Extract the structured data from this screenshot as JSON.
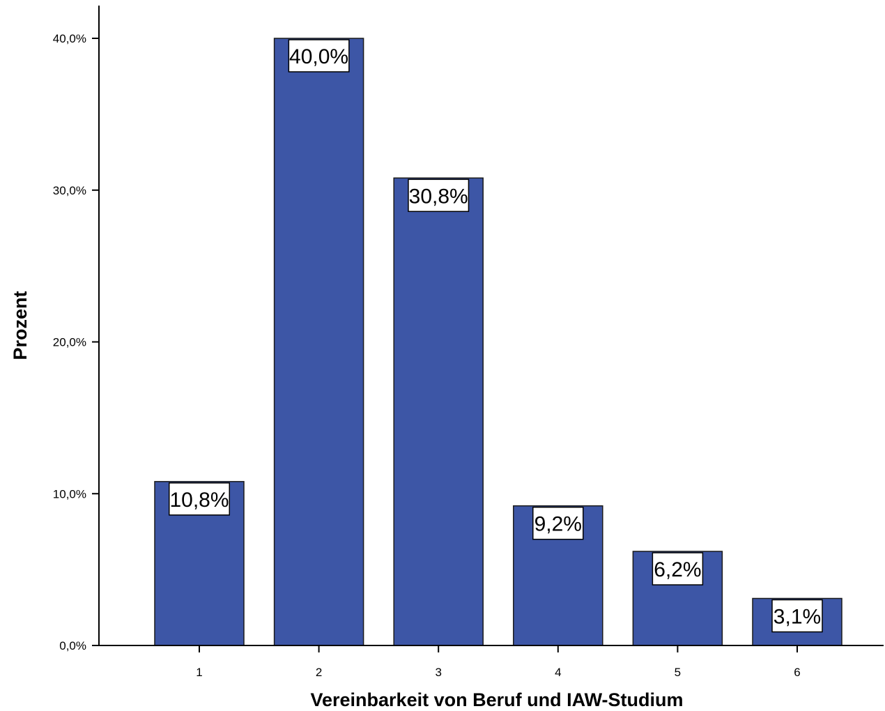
{
  "chart_data": {
    "type": "bar",
    "title": "",
    "xlabel": "Vereinbarkeit von Beruf und IAW-Studium",
    "ylabel": "Prozent",
    "categories": [
      "1",
      "2",
      "3",
      "4",
      "5",
      "6"
    ],
    "values": [
      10.8,
      40.0,
      30.8,
      9.2,
      6.2,
      3.1
    ],
    "data_labels": [
      "10,8%",
      "40,0%",
      "30,8%",
      "9,2%",
      "6,2%",
      "3,1%"
    ],
    "ylim": [
      0,
      40
    ],
    "yticks": [
      0,
      10,
      20,
      30,
      40
    ],
    "ytick_labels": [
      "0,0%",
      "10,0%",
      "20,0%",
      "30,0%",
      "40,0%"
    ],
    "grid": false,
    "legend": "none",
    "colors": {
      "bar_fill": "#3d56a6",
      "bar_stroke": "#1a1a1a",
      "label_box": "#ffffff",
      "axis": "#000000"
    }
  }
}
